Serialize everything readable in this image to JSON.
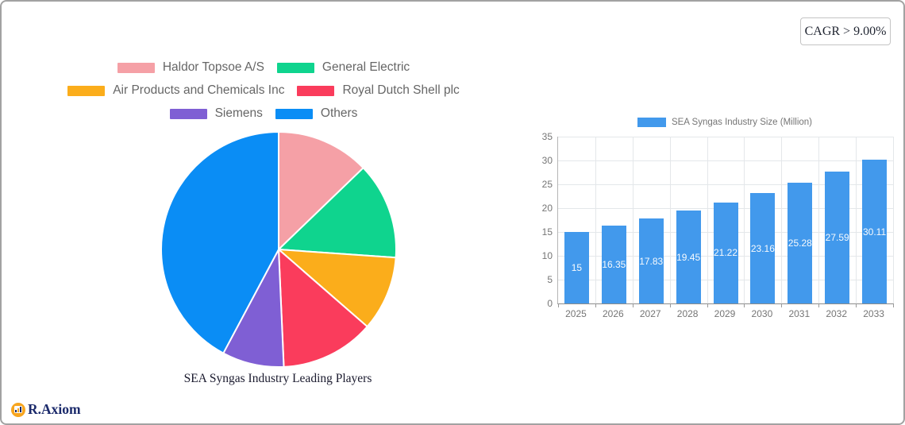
{
  "card": {
    "cagr_badge": "CAGR > 9.00%",
    "brand": "R.Axiom"
  },
  "chart_data": [
    {
      "type": "pie",
      "title": "SEA Syngas Industry Leading Players",
      "labels": [
        "Haldor Topsoe A/S",
        "General Electric",
        "Air Products and Chemicals Inc",
        "Royal Dutch Shell plc",
        "Siemens",
        "Others"
      ],
      "values": [
        12.8,
        13.3,
        10.3,
        12.9,
        8.5,
        42.2
      ],
      "colors": [
        "#F5A0A6",
        "#0FD48E",
        "#FBAD1B",
        "#FA3C5C",
        "#7F5FD4",
        "#0A8DF5"
      ],
      "legend_rows": [
        [
          0,
          1
        ],
        [
          2,
          3
        ],
        [
          4,
          5
        ]
      ],
      "start_angle_deg": 0,
      "direction": "clockwise",
      "slice_border_color": "#FFFFFF",
      "legend_position": "top"
    },
    {
      "type": "bar",
      "legend": "SEA Syngas Industry Size (Million)",
      "categories": [
        "2025",
        "2026",
        "2027",
        "2028",
        "2029",
        "2030",
        "2031",
        "2032",
        "2033"
      ],
      "values": [
        15,
        16.35,
        17.83,
        19.45,
        21.22,
        23.16,
        25.28,
        27.59,
        30.11
      ],
      "value_labels": [
        "15",
        "16.35",
        "17.83",
        "19.45",
        "21.22",
        "23.16",
        "25.28",
        "27.59",
        "30.11"
      ],
      "bar_color": "#4299EC",
      "label_color": "#F7FAFD",
      "ylim": [
        0,
        35
      ],
      "yticks": [
        0,
        5,
        10,
        15,
        20,
        25,
        30,
        35
      ],
      "grid": true,
      "legend_position": "top",
      "value_label_position": "inside-center"
    }
  ]
}
